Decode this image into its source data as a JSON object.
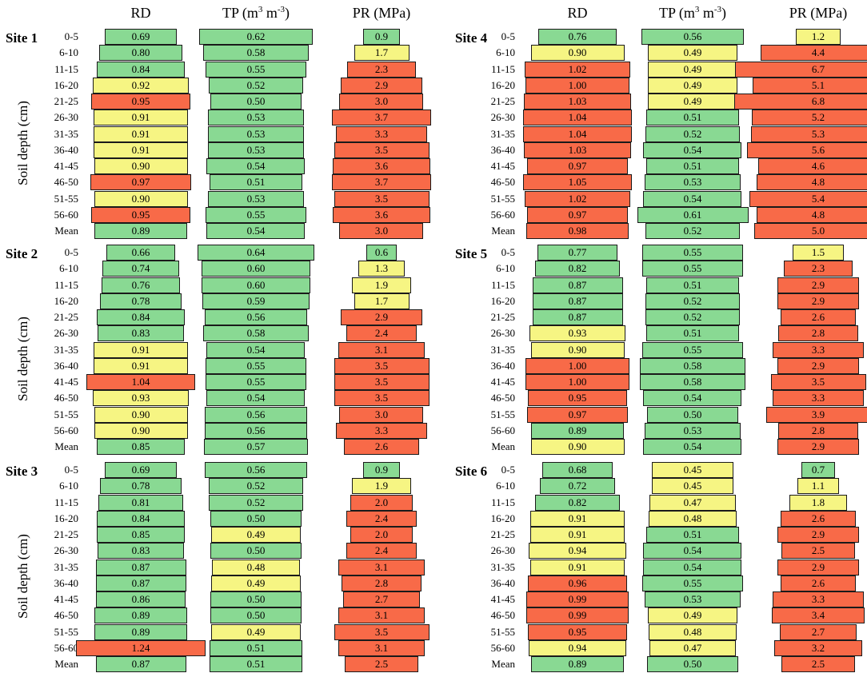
{
  "colors": {
    "green": "#89d993",
    "yellow": "#f6f583",
    "red": "#f86a48",
    "border": "#1a1a1a"
  },
  "chart_data": {
    "type": "table",
    "headers": {
      "rd": "RD",
      "tp_pre": "TP (m",
      "tp_sup1": "3",
      "tp_mid": " m",
      "tp_sup2": "-3",
      "tp_post": ")",
      "pr": "PR (MPa)"
    },
    "y_axis_label": "Soil depth (cm)",
    "depth_labels": [
      "0-5",
      "6-10",
      "11-15",
      "16-20",
      "21-25",
      "26-30",
      "31-35",
      "36-40",
      "41-45",
      "46-50",
      "51-55",
      "56-60",
      "Mean"
    ],
    "sites": [
      {
        "name": "Site 1",
        "RD": [
          "0.69",
          "0.80",
          "0.84",
          "0.92",
          "0.95",
          "0.91",
          "0.91",
          "0.91",
          "0.90",
          "0.97",
          "0.90",
          "0.95",
          "0.89"
        ],
        "RD_class": [
          "g",
          "g",
          "g",
          "y",
          "r",
          "y",
          "y",
          "y",
          "y",
          "r",
          "y",
          "r",
          "g"
        ],
        "TP": [
          "0.62",
          "0.58",
          "0.55",
          "0.52",
          "0.50",
          "0.53",
          "0.53",
          "0.53",
          "0.54",
          "0.51",
          "0.53",
          "0.55",
          "0.54"
        ],
        "TP_class": [
          "g",
          "g",
          "g",
          "g",
          "g",
          "g",
          "g",
          "g",
          "g",
          "g",
          "g",
          "g",
          "g"
        ],
        "PR": [
          "0.9",
          "1.7",
          "2.3",
          "2.9",
          "3.0",
          "3.7",
          "3.3",
          "3.5",
          "3.6",
          "3.7",
          "3.5",
          "3.6",
          "3.0"
        ],
        "PR_class": [
          "g",
          "y",
          "r",
          "r",
          "r",
          "r",
          "r",
          "r",
          "r",
          "r",
          "r",
          "r",
          "r"
        ]
      },
      {
        "name": "Site 2",
        "RD": [
          "0.66",
          "0.74",
          "0.76",
          "0.78",
          "0.84",
          "0.83",
          "0.91",
          "0.91",
          "1.04",
          "0.93",
          "0.90",
          "0.90",
          "0.85"
        ],
        "RD_class": [
          "g",
          "g",
          "g",
          "g",
          "g",
          "g",
          "y",
          "y",
          "r",
          "y",
          "y",
          "y",
          "g"
        ],
        "TP": [
          "0.64",
          "0.60",
          "0.60",
          "0.59",
          "0.56",
          "0.58",
          "0.54",
          "0.55",
          "0.55",
          "0.54",
          "0.56",
          "0.56",
          "0.57"
        ],
        "TP_class": [
          "g",
          "g",
          "g",
          "g",
          "g",
          "g",
          "g",
          "g",
          "g",
          "g",
          "g",
          "g",
          "g"
        ],
        "PR": [
          "0.6",
          "1.3",
          "1.9",
          "1.7",
          "2.9",
          "2.4",
          "3.1",
          "3.5",
          "3.5",
          "3.5",
          "3.0",
          "3.3",
          "2.6"
        ],
        "PR_class": [
          "g",
          "y",
          "y",
          "y",
          "r",
          "r",
          "r",
          "r",
          "r",
          "r",
          "r",
          "r",
          "r"
        ]
      },
      {
        "name": "Site 3",
        "RD": [
          "0.69",
          "0.78",
          "0.81",
          "0.84",
          "0.85",
          "0.83",
          "0.87",
          "0.87",
          "0.86",
          "0.89",
          "0.89",
          "1.24",
          "0.87"
        ],
        "RD_class": [
          "g",
          "g",
          "g",
          "g",
          "g",
          "g",
          "g",
          "g",
          "g",
          "g",
          "g",
          "r",
          "g"
        ],
        "TP": [
          "0.56",
          "0.52",
          "0.52",
          "0.50",
          "0.49",
          "0.50",
          "0.48",
          "0.49",
          "0.50",
          "0.50",
          "0.49",
          "0.51",
          "0.51"
        ],
        "TP_class": [
          "g",
          "g",
          "g",
          "g",
          "y",
          "g",
          "y",
          "y",
          "g",
          "g",
          "y",
          "g",
          "g"
        ],
        "PR": [
          "0.9",
          "1.9",
          "2.0",
          "2.4",
          "2.0",
          "2.4",
          "3.1",
          "2.8",
          "2.7",
          "3.1",
          "3.5",
          "3.1",
          "2.5"
        ],
        "PR_class": [
          "g",
          "y",
          "r",
          "r",
          "r",
          "r",
          "r",
          "r",
          "r",
          "r",
          "r",
          "r",
          "r"
        ]
      },
      {
        "name": "Site 4",
        "RD": [
          "0.76",
          "0.90",
          "1.02",
          "1.00",
          "1.03",
          "1.04",
          "1.04",
          "1.03",
          "0.97",
          "1.05",
          "1.02",
          "0.97",
          "0.98"
        ],
        "RD_class": [
          "g",
          "y",
          "r",
          "r",
          "r",
          "r",
          "r",
          "r",
          "r",
          "r",
          "r",
          "r",
          "r"
        ],
        "TP": [
          "0.56",
          "0.49",
          "0.49",
          "0.49",
          "0.49",
          "0.51",
          "0.52",
          "0.54",
          "0.51",
          "0.53",
          "0.54",
          "0.61",
          "0.52"
        ],
        "TP_class": [
          "g",
          "y",
          "y",
          "y",
          "y",
          "g",
          "g",
          "g",
          "g",
          "g",
          "g",
          "g",
          "g"
        ],
        "PR": [
          "1.2",
          "4.4",
          "6.7",
          "5.1",
          "6.8",
          "5.2",
          "5.3",
          "5.6",
          "4.6",
          "4.8",
          "5.4",
          "4.8",
          "5.0"
        ],
        "PR_class": [
          "y",
          "r",
          "r",
          "r",
          "r",
          "r",
          "r",
          "r",
          "r",
          "r",
          "r",
          "r",
          "r"
        ]
      },
      {
        "name": "Site 5",
        "RD": [
          "0.77",
          "0.82",
          "0.87",
          "0.87",
          "0.87",
          "0.93",
          "0.90",
          "1.00",
          "1.00",
          "0.95",
          "0.97",
          "0.89",
          "0.90"
        ],
        "RD_class": [
          "g",
          "g",
          "g",
          "g",
          "g",
          "y",
          "y",
          "r",
          "r",
          "r",
          "r",
          "g",
          "y"
        ],
        "TP": [
          "0.55",
          "0.55",
          "0.51",
          "0.52",
          "0.52",
          "0.51",
          "0.55",
          "0.58",
          "0.58",
          "0.54",
          "0.50",
          "0.53",
          "0.54"
        ],
        "TP_class": [
          "g",
          "g",
          "g",
          "g",
          "g",
          "g",
          "g",
          "g",
          "g",
          "g",
          "g",
          "g",
          "g"
        ],
        "PR": [
          "1.5",
          "2.3",
          "2.9",
          "2.9",
          "2.6",
          "2.8",
          "3.3",
          "2.9",
          "3.5",
          "3.3",
          "3.9",
          "2.8",
          "2.9"
        ],
        "PR_class": [
          "y",
          "r",
          "r",
          "r",
          "r",
          "r",
          "r",
          "r",
          "r",
          "r",
          "r",
          "r",
          "r"
        ]
      },
      {
        "name": "Site 6",
        "RD": [
          "0.68",
          "0.72",
          "0.82",
          "0.91",
          "0.91",
          "0.94",
          "0.91",
          "0.96",
          "0.99",
          "0.99",
          "0.95",
          "0.94",
          "0.89"
        ],
        "RD_class": [
          "g",
          "g",
          "g",
          "y",
          "y",
          "y",
          "y",
          "r",
          "r",
          "r",
          "r",
          "y",
          "g"
        ],
        "TP": [
          "0.45",
          "0.45",
          "0.47",
          "0.48",
          "0.51",
          "0.54",
          "0.54",
          "0.55",
          "0.53",
          "0.49",
          "0.48",
          "0.47",
          "0.50"
        ],
        "TP_class": [
          "y",
          "y",
          "y",
          "y",
          "g",
          "g",
          "g",
          "g",
          "g",
          "y",
          "y",
          "y",
          "g"
        ],
        "PR": [
          "0.7",
          "1.1",
          "1.8",
          "2.6",
          "2.9",
          "2.5",
          "2.9",
          "2.6",
          "3.3",
          "3.4",
          "2.7",
          "3.2",
          "2.5"
        ],
        "PR_class": [
          "g",
          "y",
          "y",
          "r",
          "r",
          "r",
          "r",
          "r",
          "r",
          "r",
          "r",
          "r",
          "r"
        ]
      }
    ]
  }
}
